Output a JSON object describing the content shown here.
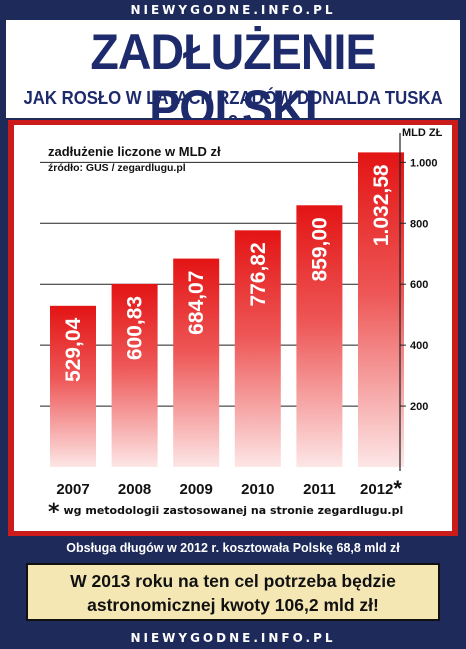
{
  "header": {
    "site_top": "NIEWYGODNE.INFO.PL",
    "title": "ZADŁUŻENIE POLSKI",
    "subtitle": "JAK ROSŁO W LATACH RZĄDÓW DONALDA TUSKA ?"
  },
  "footer": {
    "service_note": "Obsługa długów w 2012 r. kosztowała Polskę 68,8 mld zł",
    "box_line1": "W 2013 roku na ten cel potrzeba będzie",
    "box_line2": "astronomicznej kwoty 106,2 mld zł!",
    "site_bottom": "NIEWYGODNE.INFO.PL"
  },
  "chart_data": {
    "type": "bar",
    "title": "zadłużenie liczone w MLD zł",
    "source": "źródło: GUS / zegardlugu.pl",
    "ylabel": "MLD ZŁ",
    "categories": [
      "2007",
      "2008",
      "2009",
      "2010",
      "2011",
      "2012"
    ],
    "values": [
      529.04,
      600.83,
      684.07,
      776.82,
      859.0,
      1032.58
    ],
    "value_labels": [
      "529,04",
      "600,83",
      "684,07",
      "776,82",
      "859,00",
      "1.032,58"
    ],
    "category_labels": [
      "2007",
      "2008",
      "2009",
      "2010",
      "2011",
      "2012*"
    ],
    "yticks": [
      200,
      400,
      600,
      800,
      1000
    ],
    "ytick_labels": [
      "200",
      "400",
      "600",
      "800",
      "1.000"
    ],
    "ylim": [
      0,
      1070
    ],
    "grid": true,
    "footnote": "wg metodologii zastosowanej na stronie zegardlugu.pl",
    "colors": {
      "bar_top": "#e31414",
      "bar_bottom": "#fde6e6"
    }
  }
}
